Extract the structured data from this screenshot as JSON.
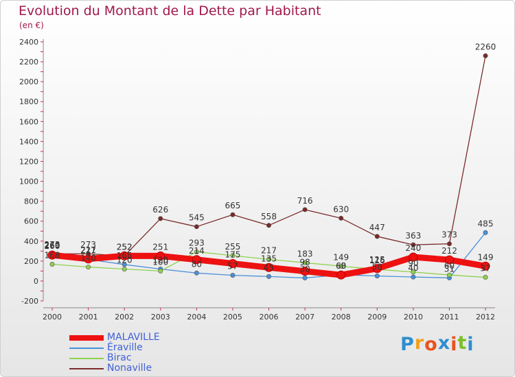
{
  "header": {
    "title": "Evolution du Montant de la Dette par Habitant",
    "subtitle": "(en €)"
  },
  "brand": {
    "letters": [
      "P",
      "r",
      "o",
      "x",
      "i",
      "t",
      "i"
    ],
    "colors": [
      "#2e8ecf",
      "#f2a018",
      "#e8541e",
      "#2e8ecf",
      "#e8541e",
      "#7cbf2a",
      "#2e8ecf"
    ]
  },
  "chart_data": {
    "type": "line",
    "title": "Evolution du Montant de la Dette par Habitant",
    "subtitle": "(en €)",
    "ylim": [
      -200,
      2400
    ],
    "y_ticks": [
      -200,
      0,
      200,
      400,
      600,
      800,
      1000,
      1200,
      1400,
      1600,
      1800,
      2000,
      2200,
      2400
    ],
    "x": [
      "2000",
      "2001",
      "2002",
      "2003",
      "2004",
      "2005",
      "2006",
      "2007",
      "2008",
      "2009",
      "2010",
      "2011",
      "2012"
    ],
    "grid": false,
    "legend_position": "bottom-left",
    "series": [
      {
        "name": "MALAVILLE",
        "color": "#ee1111",
        "values": [
          260,
          221,
          252,
          251,
          214,
          175,
          135,
          98,
          60,
          125,
          240,
          212,
          149
        ],
        "labels": [
          "260",
          "221",
          "252",
          "251",
          "214",
          "175",
          "135",
          "98",
          "60",
          "125",
          "240",
          "212",
          "149"
        ]
      },
      {
        "name": "Éraville",
        "color": "#4a90d9",
        "values": [
          269,
          217,
          165,
          120,
          80,
          57,
          45,
          30,
          63,
          50,
          40,
          31,
          485
        ],
        "labels": [
          "269",
          "217",
          "165",
          "120",
          "80",
          "57",
          "45",
          "30",
          "63",
          "50",
          "40",
          "31",
          "485"
        ]
      },
      {
        "name": "Birac",
        "color": "#8fd14f",
        "values": [
          168,
          140,
          120,
          100,
          293,
          255,
          217,
          183,
          149,
          116,
          90,
          60,
          37
        ],
        "labels": [
          "168",
          "140",
          "120",
          "100",
          "293",
          "255",
          "217",
          "183",
          "149",
          "116",
          "90",
          "60",
          "37"
        ]
      },
      {
        "name": "Nonaville",
        "color": "#7a2a2a",
        "values": [
          273,
          273,
          252,
          626,
          545,
          665,
          558,
          716,
          630,
          447,
          363,
          373,
          2260
        ],
        "labels": [
          "273",
          "273",
          "252",
          "626",
          "545",
          "665",
          "558",
          "716",
          "630",
          "447",
          "363",
          "373",
          "2260"
        ]
      }
    ]
  }
}
